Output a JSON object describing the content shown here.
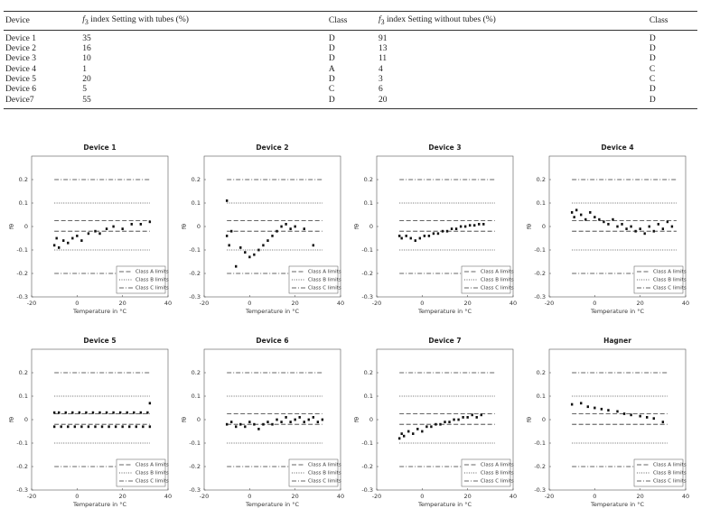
{
  "table": {
    "headers": [
      "Device",
      [
        "f",
        "3",
        "index Setting with tubes (%)"
      ],
      "Class",
      [
        "f",
        "3",
        "index Setting without tubes (%)"
      ],
      "Class"
    ],
    "rows": [
      [
        "Device 1",
        35,
        "D",
        91,
        "D"
      ],
      [
        "Device 2",
        16,
        "D",
        13,
        "D"
      ],
      [
        "Device 3",
        10,
        "D",
        11,
        "D"
      ],
      [
        "Device 4",
        1,
        "A",
        4,
        "C"
      ],
      [
        "Device 5",
        20,
        "D",
        3,
        "C"
      ],
      [
        "Device 6",
        5,
        "C",
        6,
        "D"
      ],
      [
        "Device7",
        55,
        "D",
        20,
        "D"
      ]
    ]
  },
  "chart_data": [
    {
      "type": "scatter",
      "title": "Device 1",
      "x_label": "Temperature in °C",
      "y_label": "fθ",
      "xlim": [
        -20,
        40
      ],
      "ylim": [
        -0.3,
        0.3
      ],
      "xticks": [
        -20,
        0,
        20,
        40
      ],
      "yticks": [
        -0.3,
        -0.2,
        -0.1,
        0,
        0.1,
        0.2
      ],
      "legend": "lower right",
      "limit_span": [
        -10,
        32
      ],
      "limits": [
        {
          "name": "Class A limits",
          "style": "dashed",
          "values": [
            -0.02,
            0.025
          ]
        },
        {
          "name": "Class B limits",
          "style": "dotted",
          "values": [
            -0.1,
            0.1
          ]
        },
        {
          "name": "Class C limits",
          "style": "dashdot",
          "values": [
            -0.2,
            0.2
          ]
        }
      ],
      "points": {
        "x": [
          -10,
          -9,
          -8,
          -6,
          -4,
          -2,
          0,
          2,
          5,
          8,
          10,
          13,
          16,
          20,
          24,
          28,
          32
        ],
        "y": [
          -0.08,
          -0.05,
          -0.09,
          -0.06,
          -0.07,
          -0.05,
          -0.04,
          -0.06,
          -0.03,
          -0.02,
          -0.03,
          -0.01,
          0,
          -0.01,
          0.01,
          0.01,
          0.02
        ]
      }
    },
    {
      "type": "scatter",
      "title": "Device 2",
      "x_label": "Temperature in °C",
      "y_label": "fθ",
      "xlim": [
        -20,
        40
      ],
      "ylim": [
        -0.3,
        0.3
      ],
      "xticks": [
        -20,
        0,
        20,
        40
      ],
      "yticks": [
        -0.3,
        -0.2,
        -0.1,
        0,
        0.1,
        0.2
      ],
      "legend": "lower right",
      "limit_span": [
        -10,
        32
      ],
      "limits": [
        {
          "name": "Class A limits",
          "style": "dashed",
          "values": [
            -0.02,
            0.025
          ]
        },
        {
          "name": "Class B limits",
          "style": "dotted",
          "values": [
            -0.1,
            0.1
          ]
        },
        {
          "name": "Class C limits",
          "style": "dashdot",
          "values": [
            -0.2,
            0.2
          ]
        }
      ],
      "points": {
        "x": [
          -10,
          -10,
          -9,
          -8,
          -6,
          -4,
          -2,
          0,
          2,
          4,
          6,
          8,
          10,
          12,
          14,
          16,
          18,
          20,
          24,
          28
        ],
        "y": [
          0.11,
          -0.04,
          -0.08,
          -0.02,
          -0.17,
          -0.09,
          -0.11,
          -0.13,
          -0.12,
          -0.1,
          -0.08,
          -0.06,
          -0.04,
          -0.02,
          0,
          0.01,
          -0.01,
          0,
          -0.01,
          -0.08
        ]
      }
    },
    {
      "type": "scatter",
      "title": "Device 3",
      "x_label": "Temperature in °C",
      "y_label": "fθ",
      "xlim": [
        -20,
        40
      ],
      "ylim": [
        -0.3,
        0.3
      ],
      "xticks": [
        -20,
        0,
        20,
        40
      ],
      "yticks": [
        -0.3,
        -0.2,
        -0.1,
        0,
        0.1,
        0.2
      ],
      "legend": "lower right",
      "limit_span": [
        -10,
        32
      ],
      "limits": [
        {
          "name": "Class A limits",
          "style": "dashed",
          "values": [
            -0.02,
            0.025
          ]
        },
        {
          "name": "Class B limits",
          "style": "dotted",
          "values": [
            -0.1,
            0.1
          ]
        },
        {
          "name": "Class C limits",
          "style": "dashdot",
          "values": [
            -0.2,
            0.2
          ]
        }
      ],
      "points": {
        "x": [
          -10,
          -9,
          -7,
          -5,
          -3,
          -1,
          1,
          3,
          5,
          7,
          9,
          11,
          13,
          15,
          17,
          19,
          21,
          23,
          25,
          27
        ],
        "y": [
          -0.04,
          -0.05,
          -0.04,
          -0.05,
          -0.06,
          -0.05,
          -0.04,
          -0.04,
          -0.03,
          -0.03,
          -0.02,
          -0.02,
          -0.01,
          -0.01,
          0,
          0,
          0.005,
          0.005,
          0.01,
          0.01
        ]
      }
    },
    {
      "type": "scatter",
      "title": "Device 4",
      "x_label": "Temperature in °C",
      "y_label": "fθ",
      "xlim": [
        -20,
        40
      ],
      "ylim": [
        -0.3,
        0.3
      ],
      "xticks": [
        -20,
        0,
        20,
        40
      ],
      "yticks": [
        -0.3,
        -0.2,
        -0.1,
        0,
        0.1,
        0.2
      ],
      "legend": "lower right",
      "limit_span": [
        -10,
        36
      ],
      "limits": [
        {
          "name": "Class A limits",
          "style": "dashed",
          "values": [
            -0.02,
            0.025
          ]
        },
        {
          "name": "Class B limits",
          "style": "dotted",
          "values": [
            -0.1,
            0.1
          ]
        },
        {
          "name": "Class C limits",
          "style": "dashdot",
          "values": [
            -0.2,
            0.2
          ]
        }
      ],
      "points": {
        "x": [
          -10,
          -9,
          -8,
          -6,
          -4,
          -2,
          0,
          2,
          4,
          6,
          8,
          10,
          12,
          14,
          16,
          18,
          20,
          22,
          24,
          26,
          28,
          30,
          32,
          34
        ],
        "y": [
          0.06,
          0.04,
          0.07,
          0.05,
          0.03,
          0.06,
          0.04,
          0.03,
          0.02,
          0.01,
          0.03,
          0,
          0.01,
          -0.01,
          0,
          -0.02,
          -0.01,
          -0.03,
          0,
          -0.02,
          0.01,
          -0.01,
          0.02,
          0
        ]
      }
    },
    {
      "type": "scatter",
      "title": "Device 5",
      "x_label": "Temperature in °C",
      "y_label": "fθ",
      "xlim": [
        -20,
        40
      ],
      "ylim": [
        -0.3,
        0.3
      ],
      "xticks": [
        -20,
        0,
        20,
        40
      ],
      "yticks": [
        -0.3,
        -0.2,
        -0.1,
        0,
        0.1,
        0.2
      ],
      "legend": "lower right",
      "limit_span": [
        -10,
        32
      ],
      "limits": [
        {
          "name": "Class A limits",
          "style": "dashed",
          "values": [
            -0.02,
            0.025
          ]
        },
        {
          "name": "Class B limits",
          "style": "dotted",
          "values": [
            -0.1,
            0.1
          ]
        },
        {
          "name": "Class C limits",
          "style": "dashdot",
          "values": [
            -0.2,
            0.2
          ]
        }
      ],
      "points": {
        "x": [
          -10,
          -8,
          -5,
          -2,
          1,
          4,
          7,
          10,
          13,
          16,
          19,
          22,
          25,
          28,
          31,
          -10,
          -7,
          -4,
          -1,
          2,
          5,
          8,
          11,
          14,
          17,
          20,
          23,
          26,
          29,
          32,
          32
        ],
        "y": [
          0.03,
          0.03,
          0.03,
          0.03,
          0.03,
          0.03,
          0.03,
          0.03,
          0.03,
          0.03,
          0.03,
          0.03,
          0.03,
          0.03,
          0.03,
          -0.03,
          -0.03,
          -0.03,
          -0.03,
          -0.03,
          -0.03,
          -0.03,
          -0.03,
          -0.03,
          -0.03,
          -0.03,
          -0.03,
          -0.03,
          -0.03,
          -0.03,
          0.07
        ]
      }
    },
    {
      "type": "scatter",
      "title": "Device 6",
      "x_label": "Temperature in °C",
      "y_label": "fθ",
      "xlim": [
        -20,
        40
      ],
      "ylim": [
        -0.3,
        0.3
      ],
      "xticks": [
        -20,
        0,
        20,
        40
      ],
      "yticks": [
        -0.3,
        -0.2,
        -0.1,
        0,
        0.1,
        0.2
      ],
      "legend": "lower right",
      "limit_span": [
        -10,
        32
      ],
      "limits": [
        {
          "name": "Class A limits",
          "style": "dashed",
          "values": [
            -0.02,
            0.025
          ]
        },
        {
          "name": "Class B limits",
          "style": "dotted",
          "values": [
            -0.1,
            0.1
          ]
        },
        {
          "name": "Class C limits",
          "style": "dashdot",
          "values": [
            -0.2,
            0.2
          ]
        }
      ],
      "points": {
        "x": [
          -10,
          -8,
          -6,
          -4,
          -2,
          0,
          2,
          4,
          6,
          8,
          10,
          12,
          14,
          16,
          18,
          20,
          22,
          24,
          26,
          28,
          30,
          32
        ],
        "y": [
          -0.02,
          -0.01,
          -0.03,
          -0.02,
          -0.03,
          -0.01,
          -0.02,
          -0.04,
          -0.02,
          -0.01,
          -0.02,
          0,
          -0.01,
          0.01,
          -0.01,
          0,
          0.01,
          -0.01,
          0,
          0.01,
          -0.01,
          0
        ]
      }
    },
    {
      "type": "scatter",
      "title": "Device 7",
      "x_label": "Temperature in °C",
      "y_label": "fθ",
      "xlim": [
        -20,
        40
      ],
      "ylim": [
        -0.3,
        0.3
      ],
      "xticks": [
        -20,
        0,
        20,
        40
      ],
      "yticks": [
        -0.3,
        -0.2,
        -0.1,
        0,
        0.1,
        0.2
      ],
      "legend": "lower right",
      "limit_span": [
        -10,
        32
      ],
      "limits": [
        {
          "name": "Class A limits",
          "style": "dashed",
          "values": [
            -0.02,
            0.025
          ]
        },
        {
          "name": "Class B limits",
          "style": "dotted",
          "values": [
            -0.1,
            0.1
          ]
        },
        {
          "name": "Class C limits",
          "style": "dashdot",
          "values": [
            -0.2,
            0.2
          ]
        }
      ],
      "points": {
        "x": [
          -10,
          -9,
          -8,
          -6,
          -4,
          -2,
          0,
          2,
          4,
          6,
          8,
          10,
          12,
          14,
          16,
          18,
          20,
          22,
          24,
          26
        ],
        "y": [
          -0.08,
          -0.06,
          -0.07,
          -0.05,
          -0.06,
          -0.04,
          -0.05,
          -0.03,
          -0.03,
          -0.02,
          -0.02,
          -0.01,
          -0.01,
          0,
          0,
          0.01,
          0.01,
          0.02,
          0.01,
          0.02
        ]
      }
    },
    {
      "type": "scatter",
      "title": "Hagner",
      "x_label": "Temperature in °C",
      "y_label": "fθ",
      "xlim": [
        -20,
        40
      ],
      "ylim": [
        -0.3,
        0.3
      ],
      "xticks": [
        -20,
        0,
        20,
        40
      ],
      "yticks": [
        -0.3,
        -0.2,
        -0.1,
        0,
        0.1,
        0.2
      ],
      "legend": "lower right",
      "limit_span": [
        -10,
        32
      ],
      "limits": [
        {
          "name": "Class A limits",
          "style": "dashed",
          "values": [
            -0.02,
            0.025
          ]
        },
        {
          "name": "Class B limits",
          "style": "dotted",
          "values": [
            -0.1,
            0.1
          ]
        },
        {
          "name": "Class C limits",
          "style": "dashdot",
          "values": [
            -0.2,
            0.2
          ]
        }
      ],
      "points": {
        "x": [
          -10,
          -6,
          -3,
          0,
          3,
          6,
          10,
          13,
          16,
          20,
          23,
          26,
          30
        ],
        "y": [
          0.065,
          0.07,
          0.055,
          0.05,
          0.045,
          0.04,
          0.035,
          0.025,
          0.02,
          0.015,
          0.01,
          0.005,
          -0.01
        ]
      }
    }
  ]
}
